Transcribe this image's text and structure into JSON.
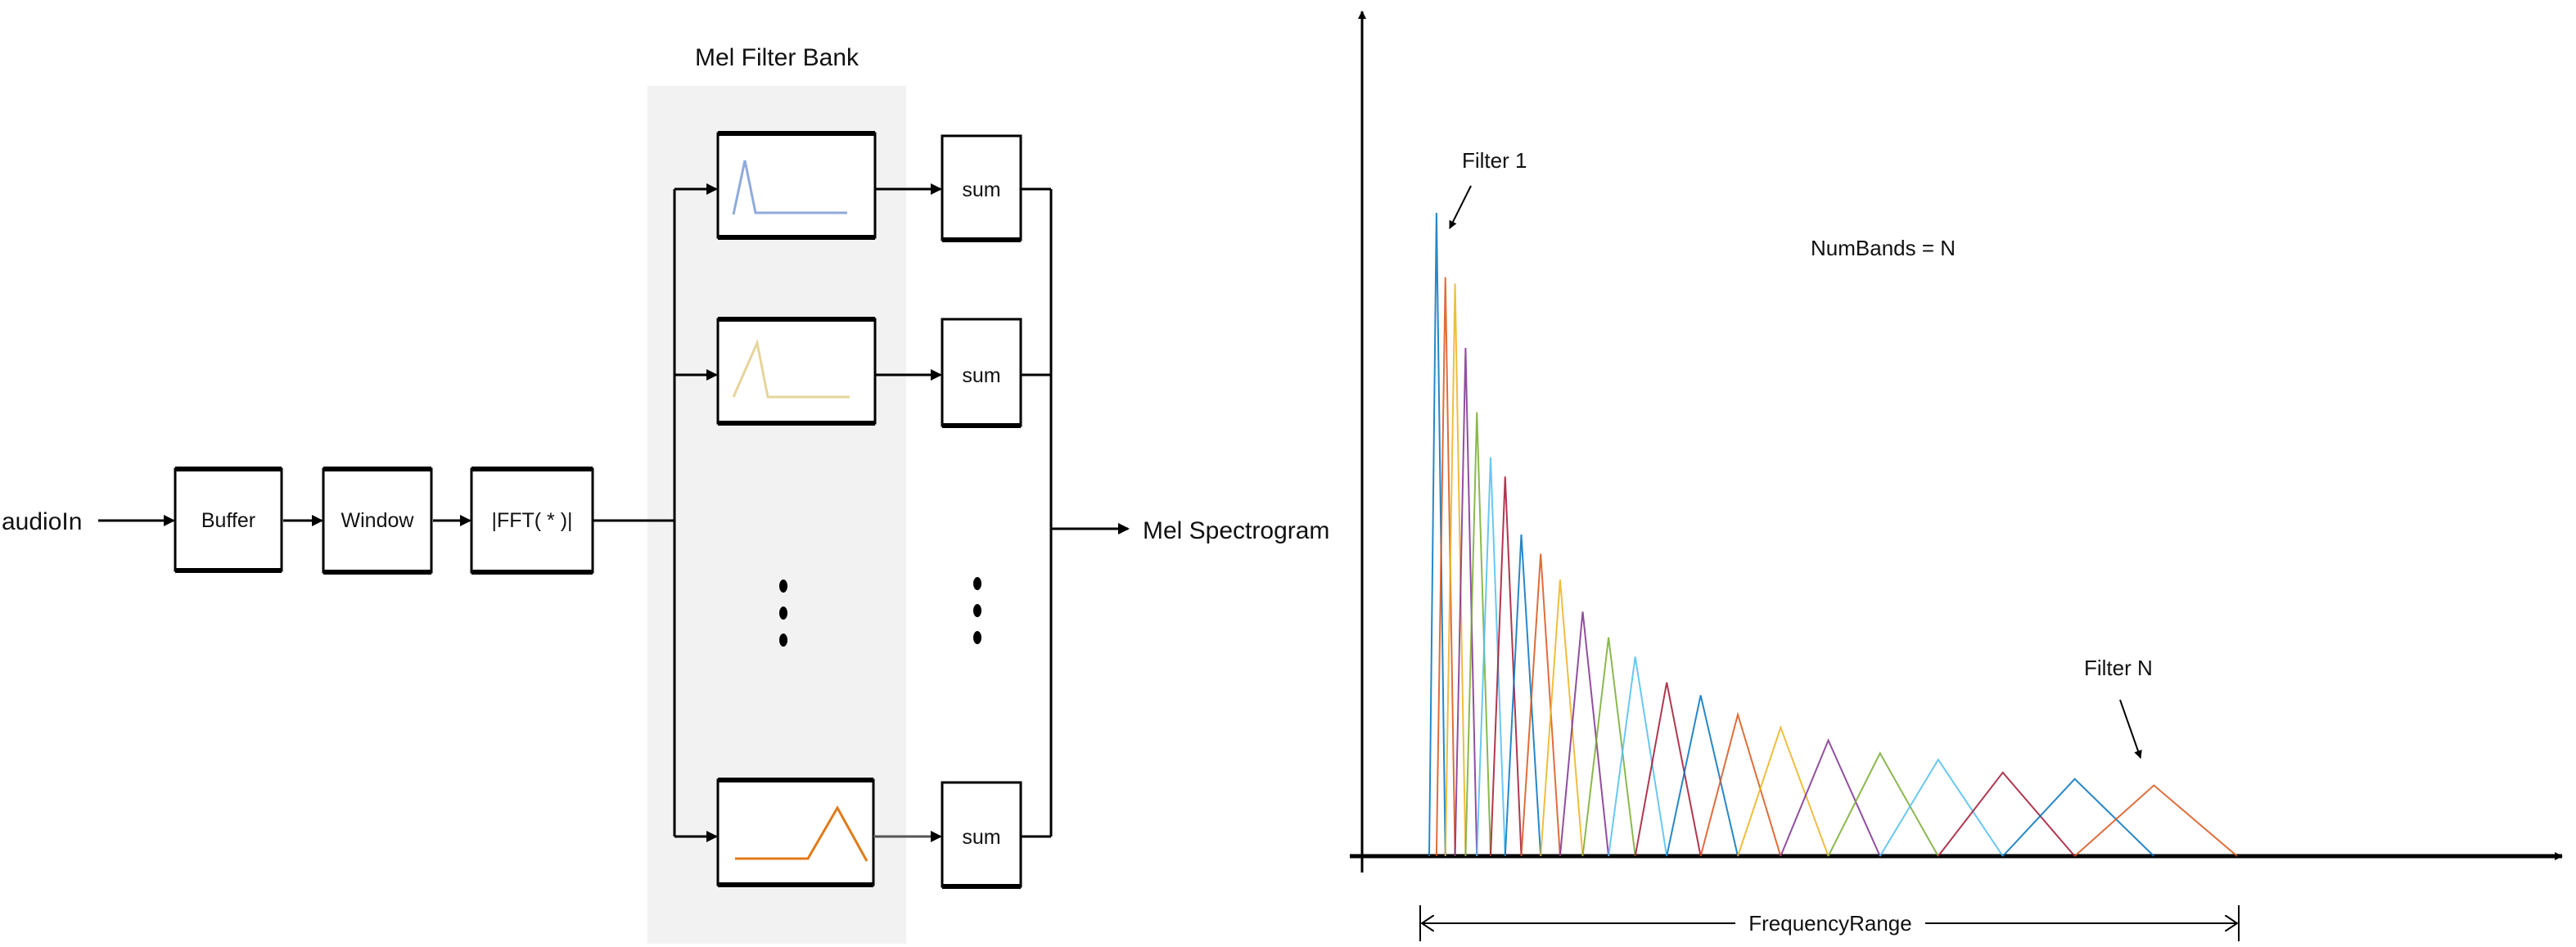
{
  "pipeline": {
    "input_label": "audioIn",
    "blocks": [
      "Buffer",
      "Window",
      "|FFT( * )|"
    ],
    "filter_bank_title": "Mel Filter Bank",
    "sum_label": "sum",
    "output_label": "Mel Spectrogram",
    "filter_glyph_colors": [
      "#8FAADC",
      "#E6D49A",
      "#E07B1A"
    ],
    "panel_color": "#F2F2F2"
  },
  "chart_data": {
    "type": "line",
    "title": "",
    "xlabel": "",
    "ylabel": "",
    "annotations": {
      "first_filter": "Filter 1",
      "last_filter": "Filter N",
      "num_bands": "NumBands = N",
      "range": "FrequencyRange"
    },
    "colors": [
      "#0072BD",
      "#D95319",
      "#EDB120",
      "#7E2F8E",
      "#77AC30",
      "#4DBEEE",
      "#A2142F"
    ],
    "filter_edges_fraction_of_range": [
      0,
      1
    ],
    "filter_centers_fraction_of_range": [
      0.009,
      0.02,
      0.032,
      0.045,
      0.059,
      0.076,
      0.094,
      0.114,
      0.138,
      0.162,
      0.19,
      0.222,
      0.255,
      0.294,
      0.336,
      0.382,
      0.435,
      0.494,
      0.558,
      0.63,
      0.71,
      0.799,
      0.897
    ],
    "filter_peak_relative": [
      1.0,
      0.9,
      0.89,
      0.79,
      0.69,
      0.62,
      0.59,
      0.5,
      0.47,
      0.43,
      0.38,
      0.34,
      0.31,
      0.27,
      0.25,
      0.22,
      0.2,
      0.18,
      0.16,
      0.15,
      0.13,
      0.12,
      0.11
    ]
  }
}
